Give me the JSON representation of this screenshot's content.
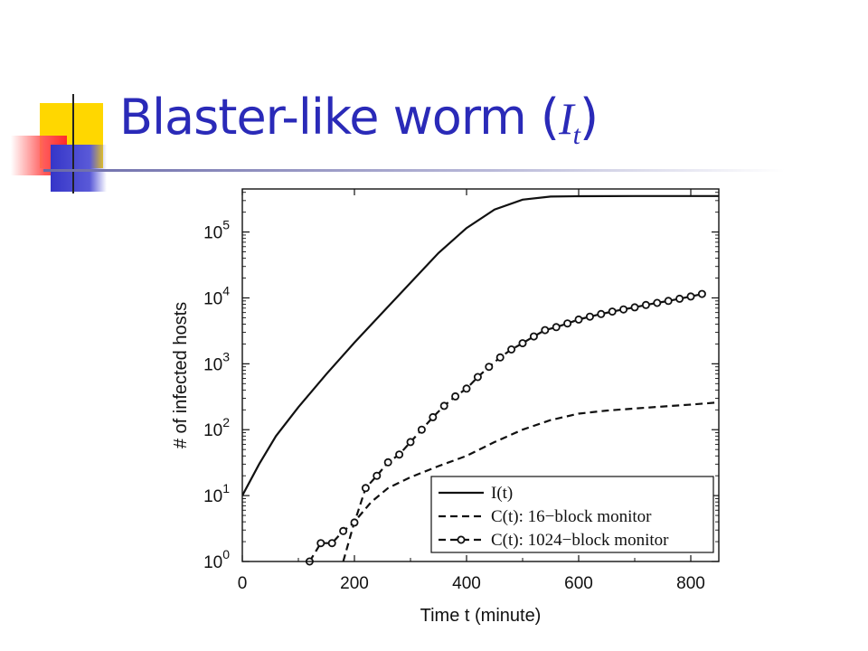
{
  "slide": {
    "title_text": "Blaster-like worm (",
    "title_var": "I",
    "title_sub": "t",
    "title_close": ")"
  },
  "colors": {
    "title": "#2a2ab8",
    "deco_yellow": "#ffd700",
    "deco_red": "#ff3b3b",
    "deco_blue": "#3a3ad0"
  },
  "chart_data": {
    "type": "line",
    "title": "",
    "xlabel": "Time t (minute)",
    "ylabel": "# of infected hosts",
    "xlim": [
      0,
      850
    ],
    "ylim": [
      1,
      450000
    ],
    "yscale": "log",
    "xticks": [
      0,
      200,
      400,
      600,
      800
    ],
    "yticks": [
      {
        "value": 1,
        "base": "10",
        "exp": "0"
      },
      {
        "value": 10,
        "base": "10",
        "exp": "1"
      },
      {
        "value": 100,
        "base": "10",
        "exp": "2"
      },
      {
        "value": 1000,
        "base": "10",
        "exp": "3"
      },
      {
        "value": 10000,
        "base": "10",
        "exp": "4"
      },
      {
        "value": 100000,
        "base": "10",
        "exp": "5"
      }
    ],
    "grid": false,
    "legend_position": "bottom-right",
    "series": [
      {
        "name": "I(t)",
        "style": "solid",
        "marker": "none",
        "x": [
          0,
          30,
          60,
          100,
          150,
          200,
          250,
          300,
          350,
          400,
          450,
          500,
          550,
          600,
          700,
          850
        ],
        "y": [
          10,
          30,
          80,
          220,
          700,
          2100,
          6000,
          17000,
          48000,
          115000,
          220000,
          310000,
          345000,
          350000,
          352000,
          352000
        ]
      },
      {
        "name": "C(t): 16−block monitor",
        "style": "dashed",
        "marker": "none",
        "x": [
          180,
          200,
          230,
          260,
          300,
          350,
          400,
          450,
          500,
          550,
          600,
          650,
          700,
          750,
          800,
          850
        ],
        "y": [
          1,
          4,
          8,
          13,
          19,
          28,
          40,
          65,
          100,
          140,
          175,
          195,
          210,
          225,
          240,
          260
        ]
      },
      {
        "name": "C(t): 1024−block monitor",
        "style": "dashed",
        "marker": "circle",
        "x": [
          120,
          140,
          160,
          180,
          200,
          220,
          240,
          260,
          280,
          300,
          320,
          340,
          360,
          380,
          400,
          420,
          440,
          460,
          480,
          500,
          520,
          540,
          560,
          580,
          600,
          620,
          640,
          660,
          680,
          700,
          720,
          740,
          760,
          780,
          800,
          820
        ],
        "y": [
          1.0,
          1.9,
          1.9,
          2.9,
          3.9,
          13,
          20,
          32,
          42,
          65,
          100,
          155,
          230,
          320,
          420,
          630,
          900,
          1250,
          1650,
          2050,
          2600,
          3250,
          3600,
          4100,
          4700,
          5200,
          5700,
          6200,
          6700,
          7200,
          7800,
          8400,
          9000,
          9700,
          10500,
          11500
        ]
      }
    ]
  }
}
